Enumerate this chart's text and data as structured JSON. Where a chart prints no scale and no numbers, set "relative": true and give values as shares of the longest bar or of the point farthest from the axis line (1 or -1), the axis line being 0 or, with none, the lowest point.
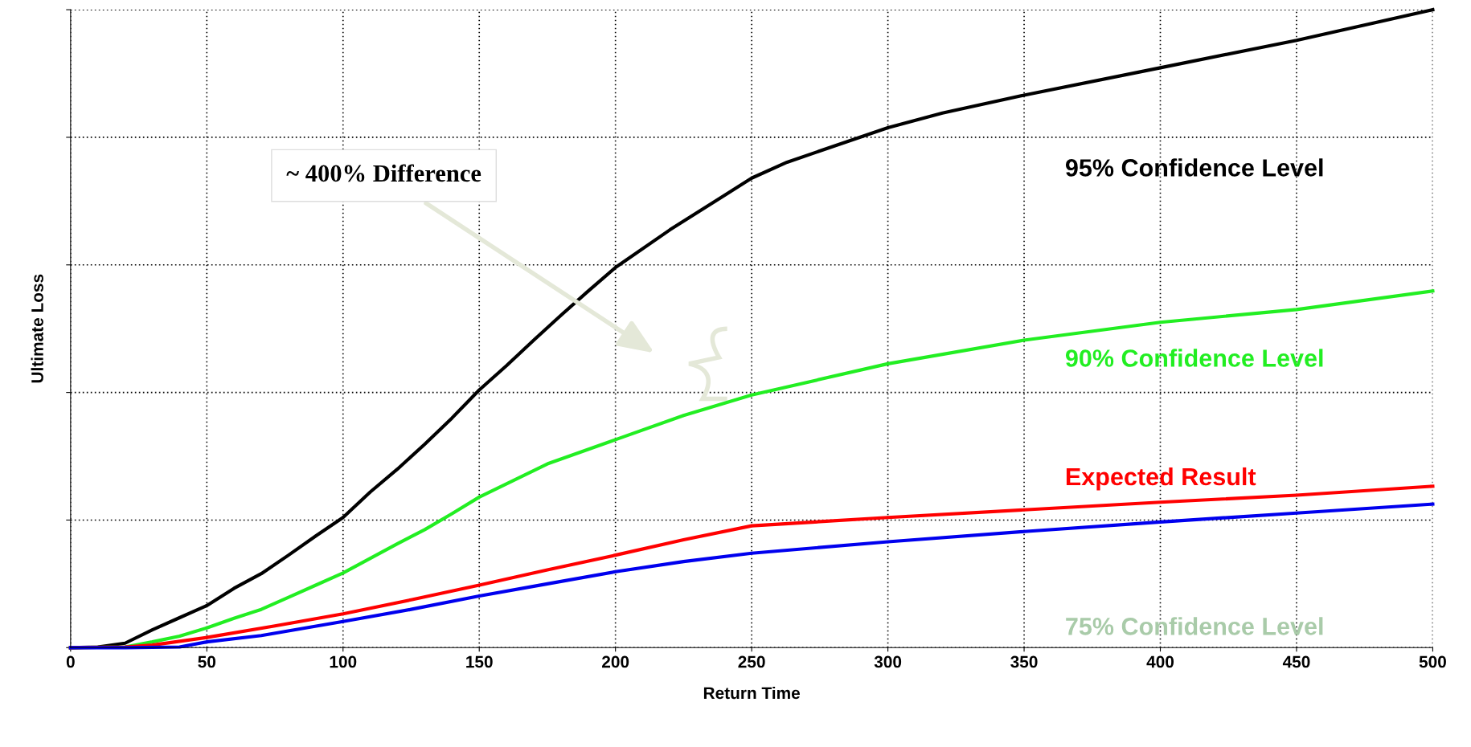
{
  "chart_data": {
    "type": "line",
    "relative": true,
    "xlabel": "Return Time",
    "ylabel": "Ultimate Loss",
    "xlim": [
      0,
      500
    ],
    "xticks": [
      0,
      50,
      100,
      150,
      200,
      250,
      300,
      350,
      400,
      450,
      500
    ],
    "grid": true,
    "annotations": [
      "~ 400% Difference",
      "75% Confidence Level"
    ],
    "series": [
      {
        "name": "95% Confidence Level",
        "color": "#000000",
        "x": [
          0,
          10,
          20,
          30,
          40,
          50,
          60,
          70,
          80,
          90,
          100,
          110,
          120,
          130,
          140,
          150,
          160,
          170,
          180,
          190,
          200,
          220,
          240,
          250,
          263,
          300,
          320,
          350,
          400,
          450,
          500
        ],
        "values": [
          0,
          0.001,
          0.007,
          0.028,
          0.047,
          0.066,
          0.093,
          0.116,
          0.145,
          0.175,
          0.204,
          0.244,
          0.28,
          0.319,
          0.36,
          0.404,
          0.442,
          0.482,
          0.521,
          0.559,
          0.596,
          0.655,
          0.709,
          0.736,
          0.761,
          0.815,
          0.838,
          0.866,
          0.909,
          0.952,
          1.0
        ]
      },
      {
        "name": "90% Confidence Level",
        "color": "#22ee22",
        "x": [
          0,
          20,
          30,
          40,
          50,
          60,
          70,
          80,
          90,
          100,
          110,
          120,
          130,
          140,
          150,
          175,
          200,
          225,
          250,
          300,
          350,
          400,
          450,
          500
        ],
        "values": [
          0,
          0.001,
          0.009,
          0.018,
          0.031,
          0.046,
          0.06,
          0.079,
          0.098,
          0.117,
          0.14,
          0.163,
          0.185,
          0.21,
          0.236,
          0.288,
          0.326,
          0.364,
          0.396,
          0.445,
          0.482,
          0.51,
          0.53,
          0.559
        ]
      },
      {
        "name": "Expected Result",
        "color": "#ff0000",
        "x": [
          0,
          20,
          30,
          50,
          75,
          100,
          125,
          150,
          175,
          200,
          225,
          250,
          300,
          350,
          400,
          450,
          500
        ],
        "values": [
          0,
          0.001,
          0.004,
          0.016,
          0.034,
          0.053,
          0.075,
          0.098,
          0.122,
          0.145,
          0.169,
          0.191,
          0.204,
          0.216,
          0.228,
          0.239,
          0.253
        ]
      },
      {
        "color": "#0000ee",
        "x": [
          0,
          20,
          40,
          50,
          70,
          100,
          125,
          150,
          175,
          200,
          225,
          250,
          300,
          350,
          400,
          450,
          500
        ],
        "values": [
          0,
          0,
          0.001,
          0.009,
          0.019,
          0.041,
          0.06,
          0.081,
          0.1,
          0.119,
          0.135,
          0.148,
          0.166,
          0.182,
          0.197,
          0.211,
          0.225
        ]
      }
    ]
  }
}
